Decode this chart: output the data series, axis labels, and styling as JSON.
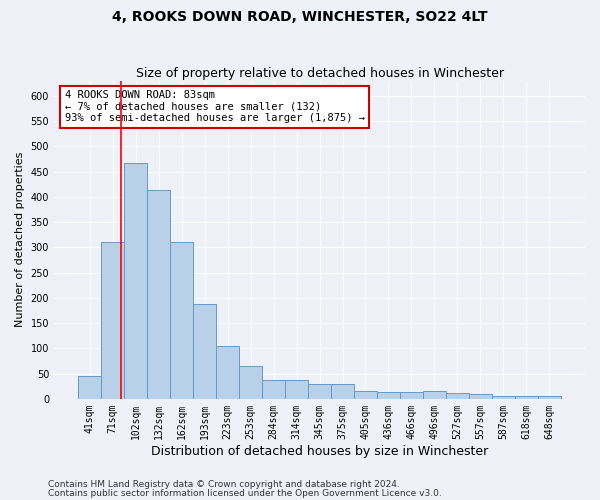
{
  "title": "4, ROOKS DOWN ROAD, WINCHESTER, SO22 4LT",
  "subtitle": "Size of property relative to detached houses in Winchester",
  "xlabel": "Distribution of detached houses by size in Winchester",
  "ylabel": "Number of detached properties",
  "categories": [
    "41sqm",
    "71sqm",
    "102sqm",
    "132sqm",
    "162sqm",
    "193sqm",
    "223sqm",
    "253sqm",
    "284sqm",
    "314sqm",
    "345sqm",
    "375sqm",
    "405sqm",
    "436sqm",
    "466sqm",
    "496sqm",
    "527sqm",
    "557sqm",
    "587sqm",
    "618sqm",
    "648sqm"
  ],
  "values": [
    46,
    311,
    467,
    413,
    311,
    188,
    104,
    65,
    38,
    38,
    30,
    30,
    15,
    13,
    13,
    15,
    11,
    9,
    6,
    5,
    5
  ],
  "bar_color": "#b8d0e8",
  "bar_edgecolor": "#6699cc",
  "bar_linewidth": 0.7,
  "ylim": [
    0,
    630
  ],
  "yticks": [
    0,
    50,
    100,
    150,
    200,
    250,
    300,
    350,
    400,
    450,
    500,
    550,
    600
  ],
  "red_line_x": 1.38,
  "annotation_text": "4 ROOKS DOWN ROAD: 83sqm\n← 7% of detached houses are smaller (132)\n93% of semi-detached houses are larger (1,875) →",
  "annotation_box_facecolor": "#ffffff",
  "annotation_box_edgecolor": "#cc0000",
  "footer_line1": "Contains HM Land Registry data © Crown copyright and database right 2024.",
  "footer_line2": "Contains public sector information licensed under the Open Government Licence v3.0.",
  "background_color": "#eef2f8",
  "grid_color": "#ffffff",
  "title_fontsize": 10,
  "subtitle_fontsize": 9,
  "xlabel_fontsize": 9,
  "ylabel_fontsize": 8,
  "tick_fontsize": 7,
  "annotation_fontsize": 7.5,
  "footer_fontsize": 6.5
}
